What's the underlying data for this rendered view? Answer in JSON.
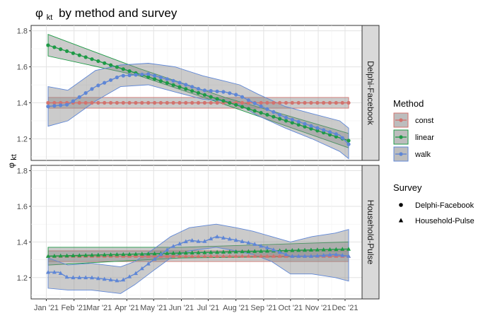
{
  "chart_data": {
    "type": "line",
    "title": "by method and survey",
    "title_symbol": "φ",
    "title_subscript": "kt",
    "ylabel_symbol": "φ",
    "ylabel_subscript": "kt",
    "xlabel": "",
    "x_ticks": [
      "Jan '21",
      "Feb '21",
      "Mar '21",
      "Apr '21",
      "May '21",
      "Jun '21",
      "Jul '21",
      "Aug '21",
      "Sep '21",
      "Oct '21",
      "Nov '21",
      "Dec '21"
    ],
    "x_range": [
      "2020-12-15",
      "2021-12-20"
    ],
    "ylim": [
      1.08,
      1.83
    ],
    "y_ticks": [
      1.2,
      1.4,
      1.6,
      1.8
    ],
    "grid": true,
    "facets": [
      "Delphi-Facebook",
      "Household-Pulse"
    ],
    "legend_position": "right",
    "method_legend": {
      "title": "Method",
      "items": [
        {
          "label": "const",
          "color": "#D2736E"
        },
        {
          "label": "linear",
          "color": "#1E9A46"
        },
        {
          "label": "walk",
          "color": "#5E86D6"
        }
      ]
    },
    "survey_legend": {
      "title": "Survey",
      "items": [
        {
          "label": "Delphi-Facebook",
          "shape": "circle"
        },
        {
          "label": "Household-Pulse",
          "shape": "triangle"
        }
      ]
    },
    "band_fill": "#8c8c8c",
    "panels": [
      {
        "facet": "Delphi-Facebook",
        "marker": "circle",
        "series": [
          {
            "method": "const",
            "points": [
              [
                "2021-01-03",
                1.4
              ],
              [
                "2021-12-05",
                1.4
              ]
            ],
            "band": [
              [
                "2021-01-03",
                1.37,
                1.43
              ],
              [
                "2021-12-05",
                1.37,
                1.43
              ]
            ]
          },
          {
            "method": "linear",
            "points": [
              [
                "2021-01-03",
                1.72
              ],
              [
                "2021-12-05",
                1.19
              ]
            ],
            "band": [
              [
                "2021-01-03",
                1.66,
                1.78
              ],
              [
                "2021-04-15",
                1.55,
                1.59
              ],
              [
                "2021-07-20",
                1.39,
                1.43
              ],
              [
                "2021-12-05",
                1.15,
                1.23
              ]
            ]
          },
          {
            "method": "walk",
            "points": [
              [
                "2021-01-03",
                1.38
              ],
              [
                "2021-01-25",
                1.39
              ],
              [
                "2021-02-25",
                1.49
              ],
              [
                "2021-03-25",
                1.55
              ],
              [
                "2021-04-25",
                1.56
              ],
              [
                "2021-05-25",
                1.52
              ],
              [
                "2021-06-25",
                1.47
              ],
              [
                "2021-07-20",
                1.46
              ],
              [
                "2021-08-05",
                1.44
              ],
              [
                "2021-08-25",
                1.39
              ],
              [
                "2021-09-25",
                1.32
              ],
              [
                "2021-10-25",
                1.27
              ],
              [
                "2021-11-25",
                1.22
              ],
              [
                "2021-12-05",
                1.17
              ]
            ],
            "band": [
              [
                "2021-01-03",
                1.27,
                1.49
              ],
              [
                "2021-01-25",
                1.3,
                1.47
              ],
              [
                "2021-02-25",
                1.41,
                1.58
              ],
              [
                "2021-03-25",
                1.49,
                1.61
              ],
              [
                "2021-04-25",
                1.5,
                1.62
              ],
              [
                "2021-05-25",
                1.46,
                1.6
              ],
              [
                "2021-06-25",
                1.42,
                1.55
              ],
              [
                "2021-07-20",
                1.41,
                1.52
              ],
              [
                "2021-08-05",
                1.39,
                1.5
              ],
              [
                "2021-08-25",
                1.33,
                1.45
              ],
              [
                "2021-09-25",
                1.26,
                1.38
              ],
              [
                "2021-10-25",
                1.2,
                1.34
              ],
              [
                "2021-11-25",
                1.13,
                1.3
              ],
              [
                "2021-12-05",
                1.09,
                1.26
              ]
            ]
          }
        ]
      },
      {
        "facet": "Household-Pulse",
        "marker": "triangle",
        "series": [
          {
            "method": "const",
            "points": [
              [
                "2021-01-03",
                1.32
              ],
              [
                "2021-12-05",
                1.32
              ]
            ],
            "band": [
              [
                "2021-01-03",
                1.29,
                1.35
              ],
              [
                "2021-12-05",
                1.29,
                1.35
              ]
            ]
          },
          {
            "method": "linear",
            "points": [
              [
                "2021-01-03",
                1.32
              ],
              [
                "2021-12-05",
                1.36
              ]
            ],
            "band": [
              [
                "2021-01-03",
                1.27,
                1.37
              ],
              [
                "2021-06-01",
                1.31,
                1.37
              ],
              [
                "2021-12-05",
                1.32,
                1.4
              ]
            ]
          },
          {
            "method": "walk",
            "points": [
              [
                "2021-01-03",
                1.23
              ],
              [
                "2021-01-15",
                1.23
              ],
              [
                "2021-01-25",
                1.2
              ],
              [
                "2021-02-20",
                1.2
              ],
              [
                "2021-03-10",
                1.19
              ],
              [
                "2021-03-25",
                1.18
              ],
              [
                "2021-04-10",
                1.22
              ],
              [
                "2021-05-01",
                1.3
              ],
              [
                "2021-05-20",
                1.37
              ],
              [
                "2021-06-10",
                1.41
              ],
              [
                "2021-06-25",
                1.4
              ],
              [
                "2021-07-10",
                1.43
              ],
              [
                "2021-08-01",
                1.41
              ],
              [
                "2021-08-20",
                1.39
              ],
              [
                "2021-09-10",
                1.36
              ],
              [
                "2021-10-01",
                1.32
              ],
              [
                "2021-10-25",
                1.32
              ],
              [
                "2021-11-20",
                1.33
              ],
              [
                "2021-12-05",
                1.32
              ]
            ],
            "band": [
              [
                "2021-01-03",
                1.14,
                1.31
              ],
              [
                "2021-01-25",
                1.13,
                1.27
              ],
              [
                "2021-02-20",
                1.13,
                1.28
              ],
              [
                "2021-03-25",
                1.11,
                1.26
              ],
              [
                "2021-04-10",
                1.16,
                1.29
              ],
              [
                "2021-05-01",
                1.24,
                1.36
              ],
              [
                "2021-05-20",
                1.31,
                1.43
              ],
              [
                "2021-06-10",
                1.35,
                1.48
              ],
              [
                "2021-07-10",
                1.37,
                1.5
              ],
              [
                "2021-08-01",
                1.35,
                1.48
              ],
              [
                "2021-08-20",
                1.33,
                1.46
              ],
              [
                "2021-09-10",
                1.29,
                1.43
              ],
              [
                "2021-10-01",
                1.22,
                1.4
              ],
              [
                "2021-10-25",
                1.22,
                1.43
              ],
              [
                "2021-11-20",
                1.2,
                1.45
              ],
              [
                "2021-12-05",
                1.18,
                1.47
              ]
            ]
          }
        ]
      }
    ]
  }
}
